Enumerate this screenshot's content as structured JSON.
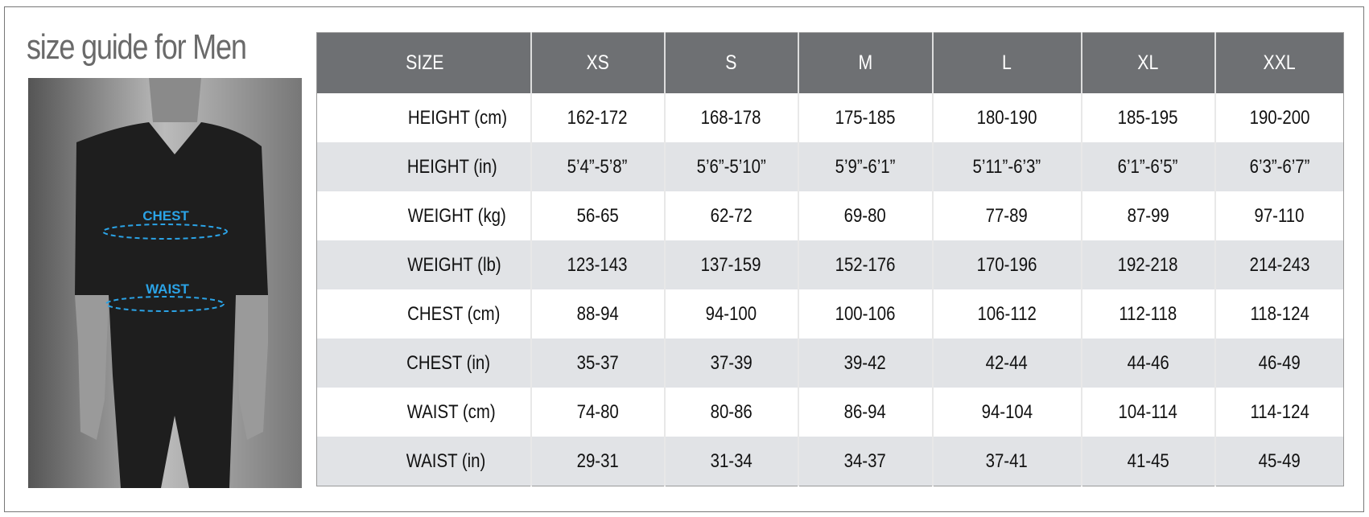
{
  "header": {
    "title": "size guide for Men"
  },
  "image_labels": {
    "chest": "CHEST",
    "waist": "WAIST"
  },
  "table": {
    "header": [
      "SIZE",
      "XS",
      "S",
      "M",
      "L",
      "XL",
      "XXL"
    ],
    "rows": [
      [
        "HEIGHT (cm)",
        "162-172",
        "168-178",
        "175-185",
        "180-190",
        "185-195",
        "190-200"
      ],
      [
        "HEIGHT (in)",
        "5’4”-5’8”",
        "5’6”-5’10”",
        "5’9”-6’1”",
        "5’11”-6’3”",
        "6’1”-6’5”",
        "6’3”-6’7”"
      ],
      [
        "WEIGHT (kg)",
        "56-65",
        "62-72",
        "69-80",
        "77-89",
        "87-99",
        "97-110"
      ],
      [
        "WEIGHT (lb)",
        "123-143",
        "137-159",
        "152-176",
        "170-196",
        "192-218",
        "214-243"
      ],
      [
        "CHEST (cm)",
        "88-94",
        "94-100",
        "100-106",
        "106-112",
        "112-118",
        "118-124"
      ],
      [
        "CHEST (in)",
        "35-37",
        "37-39",
        "39-42",
        "42-44",
        "44-46",
        "46-49"
      ],
      [
        "WAIST (cm)",
        "74-80",
        "80-86",
        "86-94",
        "94-104",
        "104-114",
        "114-124"
      ],
      [
        "WAIST (in)",
        "29-31",
        "31-34",
        "34-37",
        "37-41",
        "41-45",
        "45-49"
      ]
    ]
  }
}
